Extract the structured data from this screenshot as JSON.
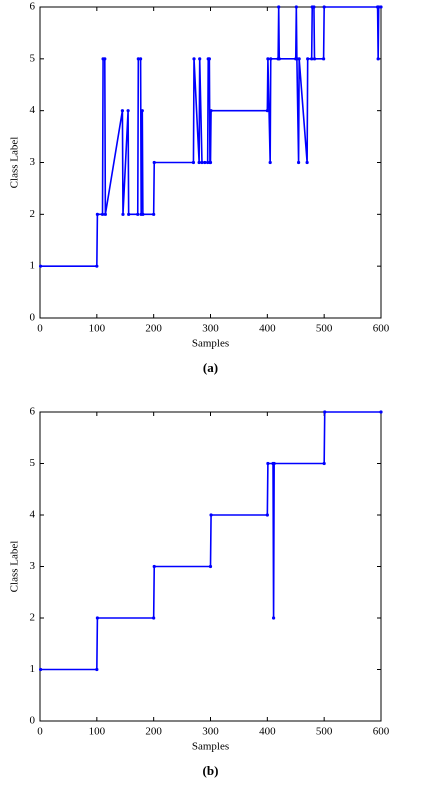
{
  "chart_data": [
    {
      "type": "line",
      "caption": "(a)",
      "x_label": "Samples",
      "y_label": "Class Label",
      "xlim": [
        0,
        600
      ],
      "ylim": [
        0,
        6
      ],
      "xticks": [
        0,
        100,
        200,
        300,
        400,
        500,
        600
      ],
      "yticks": [
        0,
        1,
        2,
        3,
        4,
        5,
        6
      ],
      "x": [
        1,
        100,
        101,
        110,
        111,
        114,
        115,
        145,
        146,
        155,
        156,
        172,
        173,
        177,
        178,
        180,
        181,
        200,
        201,
        270,
        271,
        280,
        281,
        285,
        290,
        295,
        296,
        298,
        299,
        300,
        301,
        400,
        401,
        405,
        406,
        419,
        420,
        421,
        450,
        451,
        452,
        455,
        456,
        470,
        471,
        478,
        479,
        482,
        483,
        499,
        500,
        594,
        595,
        596,
        600
      ],
      "series": [
        {
          "color": "#0000ff",
          "values": [
            1,
            1,
            2,
            2,
            5,
            5,
            2,
            4,
            2,
            4,
            2,
            2,
            5,
            5,
            2,
            4,
            2,
            2,
            3,
            3,
            5,
            3,
            5,
            3,
            3,
            3,
            5,
            5,
            3,
            3,
            4,
            4,
            5,
            3,
            5,
            5,
            6,
            5,
            5,
            6,
            5,
            3,
            5,
            3,
            5,
            5,
            6,
            6,
            5,
            5,
            6,
            6,
            5,
            6,
            6
          ]
        }
      ]
    },
    {
      "type": "line",
      "caption": "(b)",
      "x_label": "Samples",
      "y_label": "Class Label",
      "xlim": [
        0,
        600
      ],
      "ylim": [
        0,
        6
      ],
      "xticks": [
        0,
        100,
        200,
        300,
        400,
        500,
        600
      ],
      "yticks": [
        0,
        1,
        2,
        3,
        4,
        5,
        6
      ],
      "x": [
        1,
        100,
        101,
        200,
        201,
        300,
        301,
        400,
        401,
        410,
        411,
        412,
        500,
        501,
        600
      ],
      "series": [
        {
          "color": "#0000ff",
          "values": [
            1,
            1,
            2,
            2,
            3,
            3,
            4,
            4,
            5,
            5,
            2,
            5,
            5,
            6,
            6
          ]
        }
      ]
    }
  ]
}
